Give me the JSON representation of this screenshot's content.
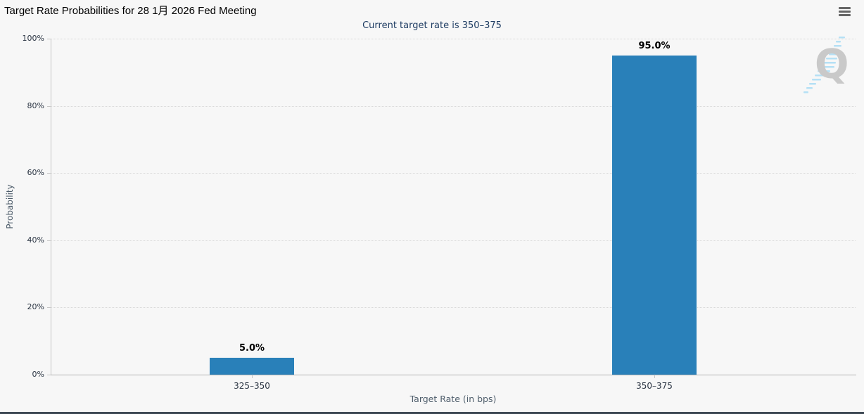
{
  "header": {
    "title": "Target Rate Probabilities for 28 1月 2026 Fed Meeting",
    "menu_icon": "hamburger-icon"
  },
  "chart_data": {
    "type": "bar",
    "title": "Target Rate Probabilities for 28 1月 2026 Fed Meeting",
    "subtitle": "Current target rate is 350–375",
    "categories": [
      "325–350",
      "350–375"
    ],
    "values": [
      5.0,
      95.0
    ],
    "value_labels": [
      "5.0%",
      "95.0%"
    ],
    "xlabel": "Target Rate (in bps)",
    "ylabel": "Probability",
    "ylim": [
      0,
      100
    ],
    "ytick_values": [
      0,
      20,
      40,
      60,
      80,
      100
    ],
    "ytick_labels": [
      "0%",
      "20%",
      "40%",
      "60%",
      "80%",
      "100%"
    ],
    "grid": "horizontal-dotted",
    "legend": "none",
    "bar_color": "#2980b9",
    "watermark_letter": "Q"
  },
  "colors": {
    "background": "#f7f7f7",
    "bar": "#2980b9",
    "title_text": "#000000",
    "subtitle_text": "#1f3d63",
    "tick_text": "#2a3442",
    "axis_title_text": "#4e5d6b",
    "gridline": "#d9d9d9",
    "axis_line": "#c5c5c5",
    "hamburger": "#666666",
    "watermark_q": "#c9c9c9",
    "watermark_stripes": "#b5e0f5",
    "footer_bar": "#3f4a55"
  }
}
